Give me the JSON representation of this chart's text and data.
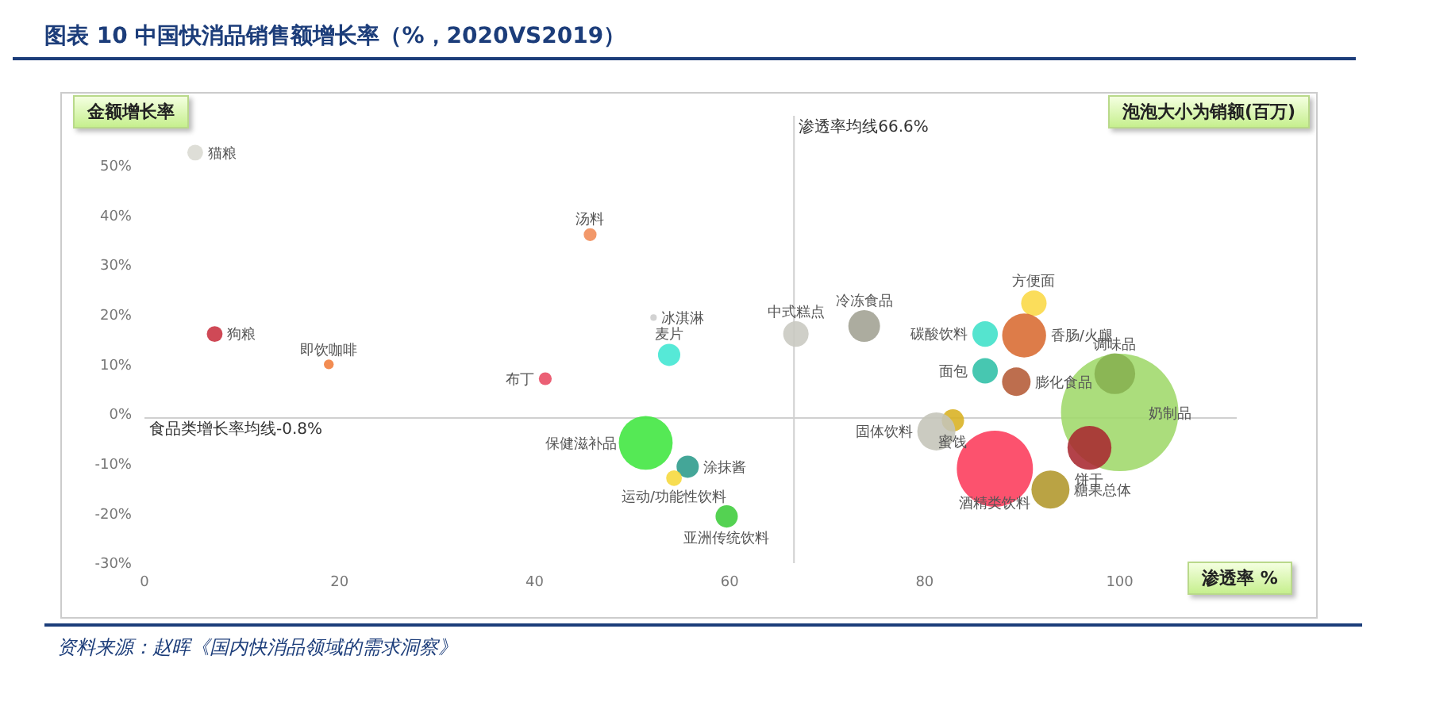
{
  "chart_data": {
    "type": "bubble",
    "title": "图表 10   中国快消品销售额增长率（%，2020VS2019）",
    "xlabel": "渗透率 %",
    "ylabel": "金额增长率",
    "x": [
      5.2,
      7.2,
      18.9,
      45.7,
      41.1,
      53.8,
      52.2,
      66.8,
      73.8,
      86.2,
      91.2,
      90.2,
      86.2,
      89.4,
      100,
      99.5,
      82.9,
      81.2,
      96.9,
      87.2,
      92.9,
      51.4,
      55.7,
      54.3,
      59.7
    ],
    "values": [
      52.6,
      16.1,
      10,
      36.1,
      7.1,
      11.9,
      19.4,
      16.1,
      17.7,
      16.1,
      22.3,
      15.8,
      8.7,
      6.5,
      0.3,
      8.1,
      -1.3,
      -3.5,
      -6.8,
      -11,
      -15.2,
      -5.8,
      -10.6,
      -12.9,
      -20.6
    ],
    "sizes": [
      0.018,
      0.018,
      0.007,
      0.012,
      0.012,
      0.036,
      0.003,
      0.047,
      0.073,
      0.047,
      0.047,
      0.14,
      0.047,
      0.059,
      1,
      0.12,
      0.036,
      0.105,
      0.14,
      0.42,
      0.105,
      0.21,
      0.036,
      0.018,
      0.036
    ],
    "colors": [
      "#d9d9d2",
      "#c8303f",
      "#f07c3a",
      "#f08a55",
      "#e84a62",
      "#3fe6d2",
      "#cccccc",
      "#c8c8c0",
      "#a0a092",
      "#3ee0c8",
      "#fbd844",
      "#d86a30",
      "#2dbfa6",
      "#b45a36",
      "#9fd86a",
      "#86b050",
      "#d8b020",
      "#c4c4b8",
      "#a82830",
      "#fc3a5a",
      "#b0962a",
      "#3ee63e",
      "#2a9a8a",
      "#f6d83a",
      "#3ccc3a"
    ],
    "xlim": [
      0,
      112
    ],
    "xticks": [
      0,
      20,
      40,
      60,
      80,
      100
    ],
    "ylim": [
      -30,
      60
    ],
    "yticks": [
      {
        "value": -30,
        "label": "-30%"
      },
      {
        "value": -20,
        "label": "-20%"
      },
      {
        "value": -10,
        "label": "-10%"
      },
      {
        "value": 0,
        "label": "0%"
      },
      {
        "value": 10,
        "label": "10%"
      },
      {
        "value": 20,
        "label": "20%"
      },
      {
        "value": 30,
        "label": "30%"
      },
      {
        "value": 40,
        "label": "40%"
      },
      {
        "value": 50,
        "label": "50%"
      }
    ],
    "ref_lines": [
      {
        "axis": "x",
        "value": 66.6,
        "label": "渗透率均线66.6%",
        "color": "#d0d0d0"
      },
      {
        "axis": "y",
        "value": -0.8,
        "label": "食品类增长率均线-0.8%",
        "color": "#d0d0d0"
      }
    ],
    "annotations": [
      "泡泡大小为销额(百万)",
      {
        "text": "猫粮",
        "x": 5.2,
        "y": 52.6
      },
      {
        "text": "狗粮",
        "x": 7.2,
        "y": 16.1
      },
      {
        "text": "即饮咖啡",
        "x": 18.9,
        "y": 10
      },
      {
        "text": "汤料",
        "x": 45.7,
        "y": 36.1
      },
      {
        "text": "布丁",
        "x": 41.1,
        "y": 7.1
      },
      {
        "text": "麦片",
        "x": 53.8,
        "y": 11.9
      },
      {
        "text": "冰淇淋",
        "x": 52.2,
        "y": 19.4
      },
      {
        "text": "中式糕点",
        "x": 66.8,
        "y": 16.1
      },
      {
        "text": "冷冻食品",
        "x": 73.8,
        "y": 17.7
      },
      {
        "text": "碳酸饮料",
        "x": 86.2,
        "y": 16.1
      },
      {
        "text": "方便面",
        "x": 91.2,
        "y": 22.3
      },
      {
        "text": "香肠/火腿",
        "x": 90.2,
        "y": 15.8
      },
      {
        "text": "面包",
        "x": 86.2,
        "y": 8.7
      },
      {
        "text": "膨化食品",
        "x": 89.4,
        "y": 6.5
      },
      {
        "text": "奶制品",
        "x": 100,
        "y": 0.3
      },
      {
        "text": "调味品",
        "x": 99.5,
        "y": 8.1
      },
      {
        "text": "蜜饯",
        "x": 82.9,
        "y": -1.3
      },
      {
        "text": "固体饮料",
        "x": 81.2,
        "y": -3.5
      },
      {
        "text": "饼干",
        "x": 96.9,
        "y": -6.8
      },
      {
        "text": "酒精类饮料",
        "x": 87.2,
        "y": -11
      },
      {
        "text": "糖果总体",
        "x": 92.9,
        "y": -15.2
      },
      {
        "text": "保健滋补品",
        "x": 51.4,
        "y": -5.8
      },
      {
        "text": "涂抹酱",
        "x": 55.7,
        "y": -10.6
      },
      {
        "text": "运动/功能性饮料",
        "x": 54.3,
        "y": -12.9
      },
      {
        "text": "亚洲传统饮料",
        "x": 59.7,
        "y": -20.6
      },
      "资料来源：赵晖《国内快消品领域的需求洞察》"
    ]
  }
}
